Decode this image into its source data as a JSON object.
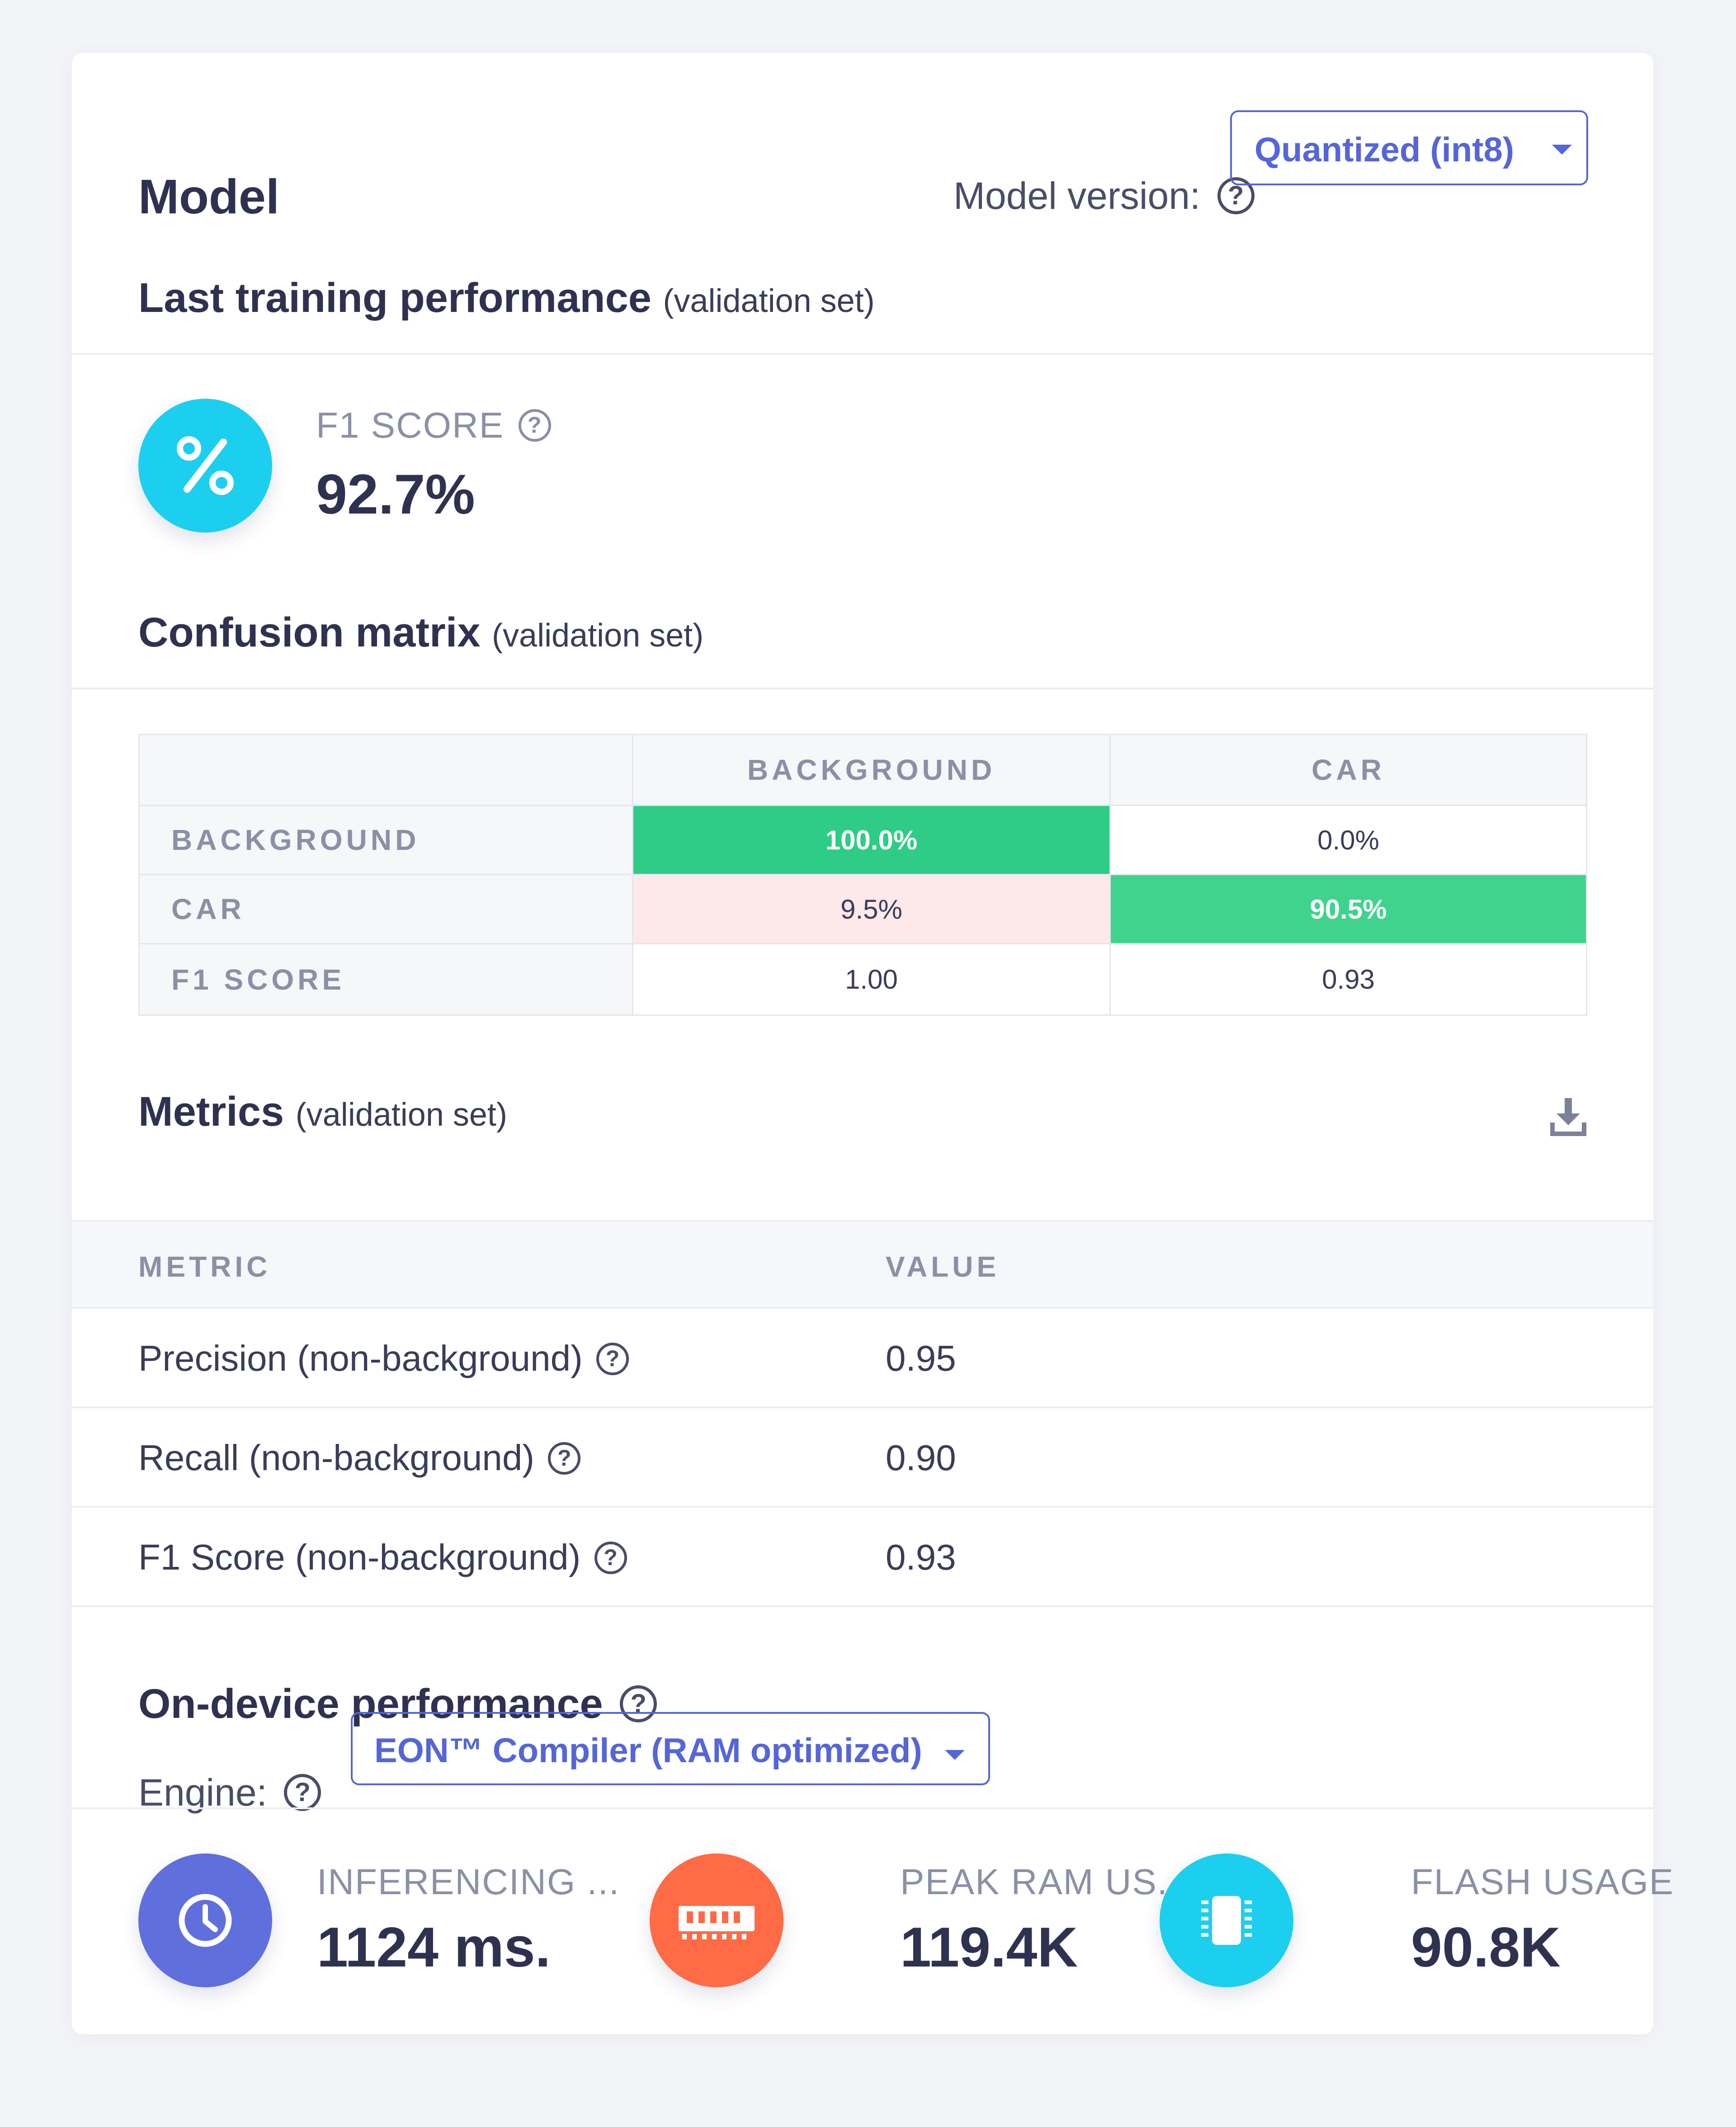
{
  "header": {
    "title": "Model",
    "model_version_label": "Model version:",
    "model_version_value": "Quantized (int8)"
  },
  "training": {
    "title": "Last training performance",
    "subtitle": "(validation set)",
    "f1_label": "F1 SCORE",
    "f1_value": "92.7%",
    "f1_icon_glyph": "%"
  },
  "confusion": {
    "title": "Confusion matrix",
    "subtitle": "(validation set)",
    "columns": [
      "BACKGROUND",
      "CAR"
    ],
    "rows": [
      {
        "label": "BACKGROUND",
        "cells": [
          "100.0%",
          "0.0%"
        ]
      },
      {
        "label": "CAR",
        "cells": [
          "9.5%",
          "90.5%"
        ]
      },
      {
        "label": "F1 SCORE",
        "cells": [
          "1.00",
          "0.93"
        ]
      }
    ],
    "colors": {
      "correct_high": "#2ecc86",
      "correct": "#3fd38e",
      "error": "#fde8ea"
    }
  },
  "metrics": {
    "title": "Metrics",
    "subtitle": "(validation set)",
    "col_metric": "METRIC",
    "col_value": "VALUE",
    "rows": [
      {
        "metric": "Precision (non-background)",
        "value": "0.95"
      },
      {
        "metric": "Recall (non-background)",
        "value": "0.90"
      },
      {
        "metric": "F1 Score (non-background)",
        "value": "0.93"
      }
    ]
  },
  "ondevice": {
    "title": "On-device performance",
    "engine_label": "Engine:",
    "engine_value": "EON™ Compiler (RAM optimized)",
    "stats": [
      {
        "label": "INFERENCING ...",
        "value": "1124 ms.",
        "icon": "clock-icon",
        "color": "#5f6fdc"
      },
      {
        "label": "PEAK RAM US...",
        "value": "119.4K",
        "icon": "ram-icon",
        "color": "#ff6b45"
      },
      {
        "label": "FLASH USAGE",
        "value": "90.8K",
        "icon": "chip-icon",
        "color": "#1ccfee"
      }
    ]
  },
  "colors": {
    "accent": "#5466d8",
    "f1_circle": "#1ccfee",
    "text_dark": "#2f3150",
    "text_muted": "#8b90a6"
  }
}
